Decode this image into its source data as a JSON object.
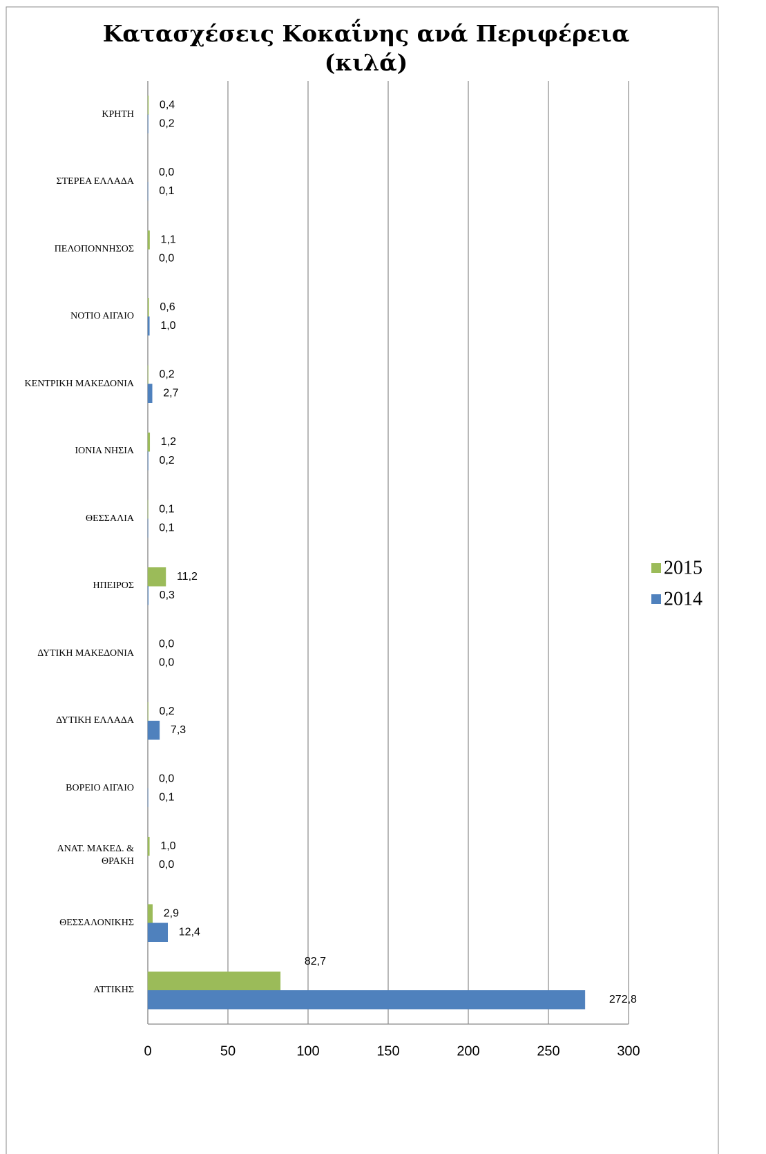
{
  "chart_data": {
    "type": "bar",
    "orientation": "horizontal",
    "title": "Κατασχέσεις Κοκαΐνης ανά Περιφέρεια (κιλά)",
    "categories": [
      "ΚΡΗΤΗ",
      "ΣΤΕΡΕΑ ΕΛΛΑΔΑ",
      "ΠΕΛΟΠΟΝΝΗΣΟΣ",
      "ΝΟΤΙΟ ΑΙΓΑΙΟ",
      "ΚΕΝΤΡΙΚΗ ΜΑΚΕΔΟΝΙΑ",
      "ΙΟΝΙΑ ΝΗΣΙΑ",
      "ΘΕΣΣΑΛΙΑ",
      "ΗΠΕΙΡΟΣ",
      "ΔΥΤΙΚΗ ΜΑΚΕΔΟΝΙΑ",
      "ΔΥΤΙΚΗ ΕΛΛΑΔΑ",
      "ΒΟΡΕΙΟ ΑΙΓΑΙΟ",
      "ΑΝΑΤ. ΜΑΚΕΔ. & ΘΡΑΚΗ",
      "ΘΕΣΣΑΛΟΝΙΚΗΣ",
      "ΑΤΤΙΚΗΣ"
    ],
    "series": [
      {
        "name": "2015",
        "color": "#9bbb59",
        "values": [
          0.4,
          0.0,
          1.1,
          0.6,
          0.2,
          1.2,
          0.1,
          11.2,
          0.0,
          0.2,
          0.0,
          1.0,
          2.9,
          82.7
        ],
        "value_labels": [
          "0,4",
          "0,0",
          "1,1",
          "0,6",
          "0,2",
          "1,2",
          "0,1",
          "11,2",
          "0,0",
          "0,2",
          "0,0",
          "1,0",
          "2,9",
          "82,7"
        ]
      },
      {
        "name": "2014",
        "color": "#4f81bd",
        "values": [
          0.2,
          0.1,
          0.0,
          1.0,
          2.7,
          0.2,
          0.1,
          0.3,
          0.0,
          7.3,
          0.1,
          0.0,
          12.4,
          272.8
        ],
        "value_labels": [
          "0,2",
          "0,1",
          "0,0",
          "1,0",
          "2,7",
          "0,2",
          "0,1",
          "0,3",
          "0,0",
          "7,3",
          "0,1",
          "0,0",
          "12,4",
          "272,8"
        ]
      }
    ],
    "xlim": [
      0,
      300
    ],
    "xticks": [
      0,
      50,
      100,
      150,
      200,
      250,
      300
    ],
    "grid": true,
    "legend": "right"
  }
}
